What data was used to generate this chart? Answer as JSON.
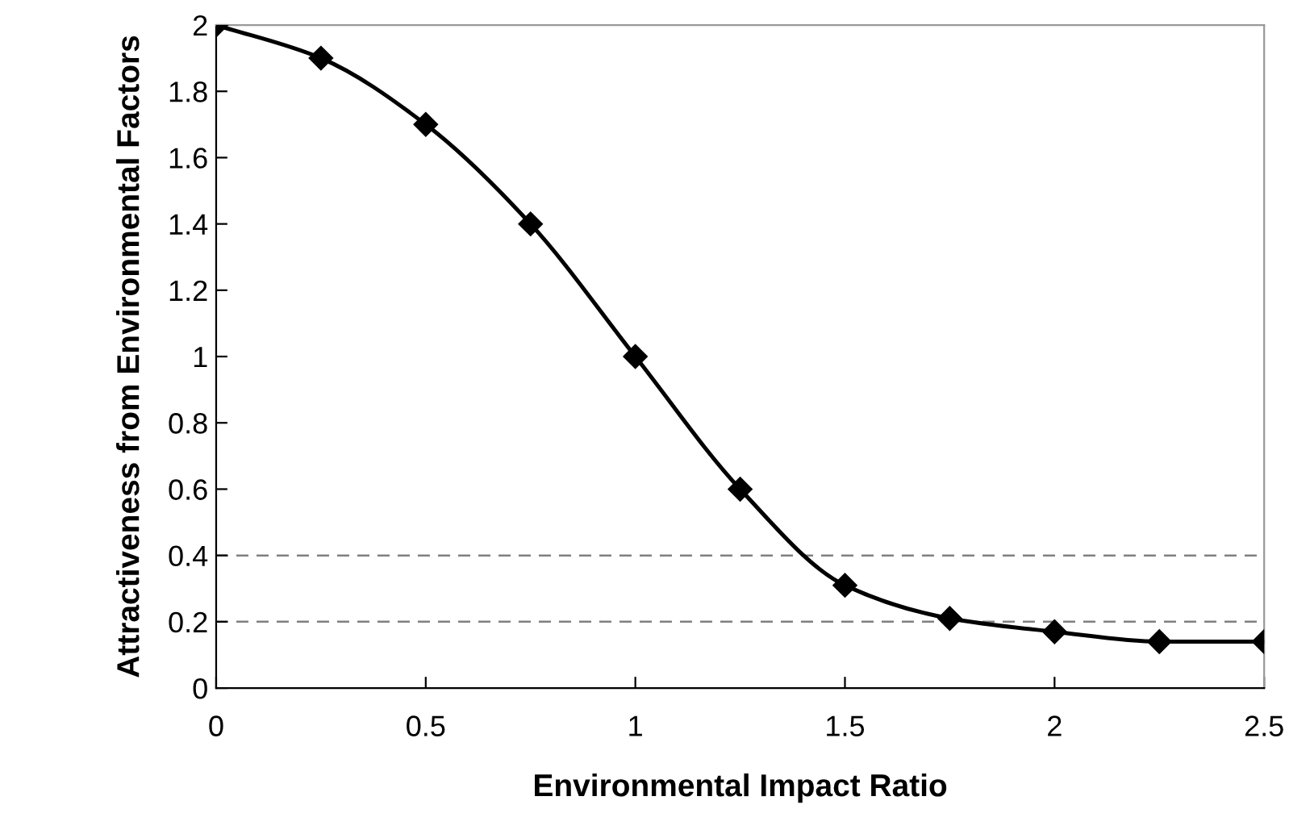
{
  "chart_data": {
    "type": "line",
    "xlabel": "Environmental Impact Ratio",
    "ylabel": "Attractiveness from Environmental Factors",
    "x": [
      0,
      0.25,
      0.5,
      0.75,
      1,
      1.25,
      1.5,
      1.75,
      2,
      2.25,
      2.5
    ],
    "series": [
      {
        "color": "#000000",
        "values": [
          2,
          1.9,
          1.7,
          1.4,
          1,
          0.6,
          0.31,
          0.21,
          0.17,
          0.14,
          0.14
        ]
      }
    ],
    "xlim": [
      0,
      2.5
    ],
    "xticks": [
      0,
      0.5,
      1,
      1.5,
      2,
      2.5
    ],
    "ylim": [
      0,
      2
    ],
    "yticks": [
      0,
      0.2,
      0.4,
      0.6,
      0.8,
      1,
      1.2,
      1.4,
      1.6,
      1.8,
      2
    ],
    "ref_lines": [
      {
        "axis": "y",
        "value": 0.4,
        "color": "#808080",
        "line_style": "dashed"
      },
      {
        "axis": "y",
        "value": 0.2,
        "color": "#808080",
        "line_style": "dashed"
      }
    ],
    "marker": "diamond",
    "line_style": "solid",
    "grid": false,
    "legend": false
  }
}
